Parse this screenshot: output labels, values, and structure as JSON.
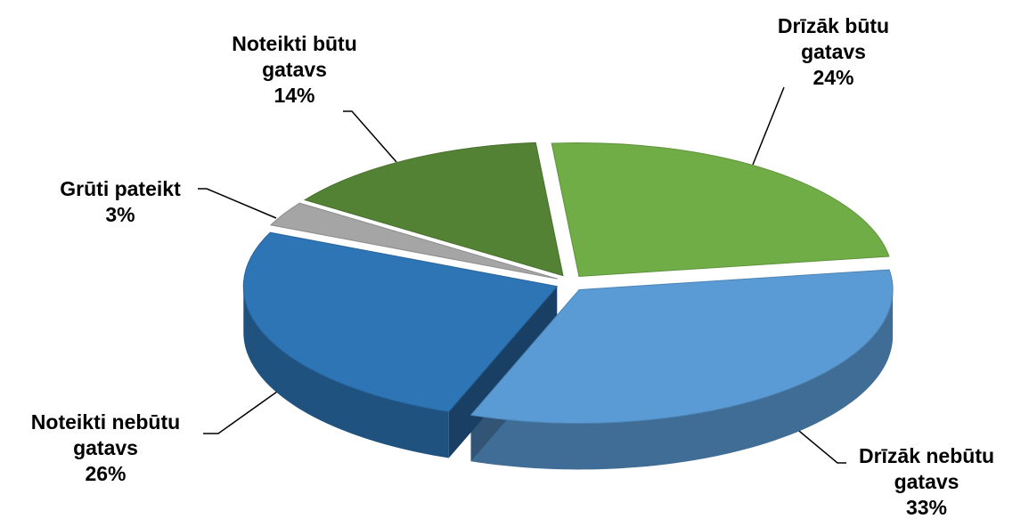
{
  "chart_data": {
    "type": "pie",
    "categories": [
      "Drīzāk būtu gatavs",
      "Drīzāk nebūtu gatavs",
      "Noteikti nebūtu gatavs",
      "Grūti pateikt",
      "Noteikti būtu gatavs"
    ],
    "values": [
      24,
      33,
      26,
      3,
      14
    ],
    "value_labels": [
      "24%",
      "33%",
      "26%",
      "3%",
      "14%"
    ],
    "colors": [
      "#70ad47",
      "#5b9bd5",
      "#2e75b6",
      "#a5a5a5",
      "#548235"
    ]
  }
}
